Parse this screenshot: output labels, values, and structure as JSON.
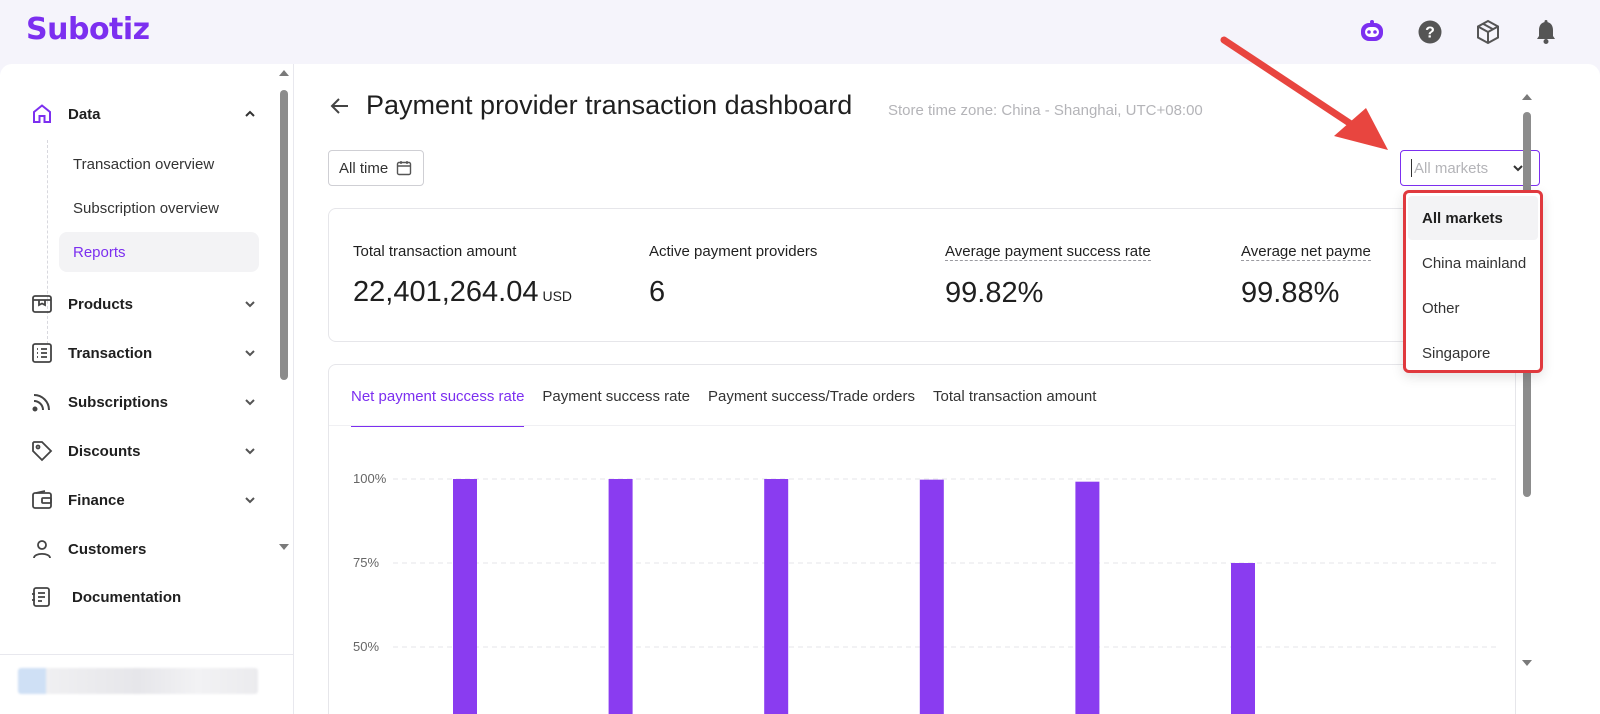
{
  "app": {
    "logo": "Subotiz"
  },
  "topbar": {
    "icons": [
      "assistant-icon",
      "help-icon",
      "package-icon",
      "bell-icon"
    ]
  },
  "sidebar": {
    "items": [
      {
        "label": "Data",
        "icon": "home-icon",
        "expanded": true
      },
      {
        "label": "Products",
        "icon": "products-icon"
      },
      {
        "label": "Transaction",
        "icon": "list-icon"
      },
      {
        "label": "Subscriptions",
        "icon": "rss-icon"
      },
      {
        "label": "Discounts",
        "icon": "tag-icon"
      },
      {
        "label": "Finance",
        "icon": "wallet-icon"
      },
      {
        "label": "Customers",
        "icon": "user-icon"
      },
      {
        "label": "Documentation",
        "icon": "doc-icon"
      }
    ],
    "data_sub": [
      {
        "label": "Transaction overview"
      },
      {
        "label": "Subscription overview"
      },
      {
        "label": "Reports",
        "active": true
      }
    ]
  },
  "page": {
    "title": "Payment provider transaction dashboard",
    "timezone": "Store time zone: China - Shanghai, UTC+08:00",
    "date_filter": "All time",
    "market_placeholder": "All markets"
  },
  "stats": [
    {
      "label": "Total transaction amount",
      "value": "22,401,264.04",
      "unit": "USD"
    },
    {
      "label": "Active payment providers",
      "value": "6",
      "unit": ""
    },
    {
      "label": "Average payment success rate",
      "value": "99.82%",
      "unit": ""
    },
    {
      "label": "Average net payme",
      "value": "99.88%",
      "unit": ""
    }
  ],
  "tabs": [
    {
      "label": "Net payment success rate",
      "active": true
    },
    {
      "label": "Payment success rate"
    },
    {
      "label": "Payment success/Trade orders"
    },
    {
      "label": "Total transaction amount"
    }
  ],
  "dropdown": {
    "options": [
      "All markets",
      "China mainland",
      "Other",
      "Singapore"
    ],
    "selected": "All markets"
  },
  "colors": {
    "accent": "#7c2ff0",
    "bar": "#8a3cf0",
    "highlight": "#e0393e"
  },
  "chart_data": {
    "type": "bar",
    "y_ticks": [
      "100%",
      "75%",
      "50%"
    ],
    "values": [
      100,
      100,
      100,
      99.8,
      99.2,
      75
    ],
    "ylim_visible": [
      50,
      100
    ]
  }
}
